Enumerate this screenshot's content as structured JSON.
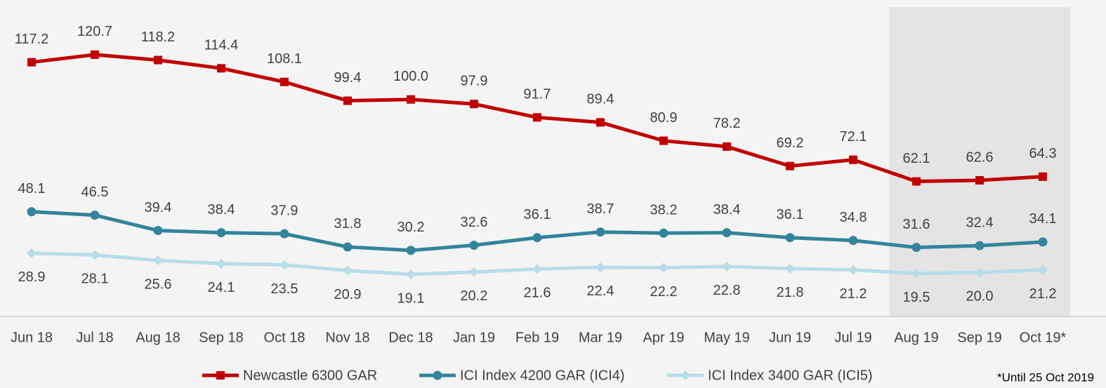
{
  "chart_data": {
    "type": "line",
    "categories": [
      "Jun 18",
      "Jul 18",
      "Aug 18",
      "Sep 18",
      "Oct 18",
      "Nov 18",
      "Dec 18",
      "Jan 19",
      "Feb 19",
      "Mar 19",
      "Apr 19",
      "May 19",
      "Jun 19",
      "Jul 19",
      "Aug 19",
      "Sep 19",
      "Oct 19*"
    ],
    "series": [
      {
        "name": "Newcastle 6300 GAR",
        "color": "#c00000",
        "marker": "square",
        "label_position": "above",
        "values": [
          117.2,
          120.7,
          118.2,
          114.4,
          108.1,
          99.4,
          100.0,
          97.9,
          91.7,
          89.4,
          80.9,
          78.2,
          69.2,
          72.1,
          62.1,
          62.6,
          64.3
        ],
        "value_labels": [
          "117.2",
          "120.7",
          "118.2",
          "114.4",
          "108.1",
          "99.4",
          "100.0",
          "97.9",
          "91.7",
          "89.4",
          "80.9",
          "78.2",
          "69.2",
          "72.1",
          "62.1",
          "62.6",
          "64.3"
        ]
      },
      {
        "name": "ICI Index 4200 GAR (ICI4)",
        "color": "#31849b",
        "marker": "circle",
        "label_position": "above",
        "values": [
          48.1,
          46.5,
          39.4,
          38.4,
          37.9,
          31.8,
          30.2,
          32.6,
          36.1,
          38.7,
          38.2,
          38.4,
          36.1,
          34.8,
          31.6,
          32.4,
          34.1
        ],
        "value_labels": [
          "48.1",
          "46.5",
          "39.4",
          "38.4",
          "37.9",
          "31.8",
          "30.2",
          "32.6",
          "36.1",
          "38.7",
          "38.2",
          "38.4",
          "36.1",
          "34.8",
          "31.6",
          "32.4",
          "34.1"
        ]
      },
      {
        "name": "ICI Index 3400 GAR (ICI5)",
        "color": "#b7dde8",
        "marker": "diamond",
        "label_position": "below",
        "values": [
          28.9,
          28.1,
          25.6,
          24.1,
          23.5,
          20.9,
          19.1,
          20.2,
          21.6,
          22.4,
          22.2,
          22.8,
          21.8,
          21.2,
          19.5,
          20.0,
          21.2
        ],
        "value_labels": [
          "28.9",
          "28.1",
          "25.6",
          "24.1",
          "23.5",
          "20.9",
          "19.1",
          "20.2",
          "21.6",
          "22.4",
          "22.2",
          "22.8",
          "21.8",
          "21.2",
          "19.5",
          "20.0",
          "21.2"
        ]
      }
    ],
    "ylim": [
      0,
      145
    ],
    "highlight_range": [
      14,
      16
    ],
    "footnote": "*Until 25 Oct 2019",
    "legend": "bottom"
  }
}
